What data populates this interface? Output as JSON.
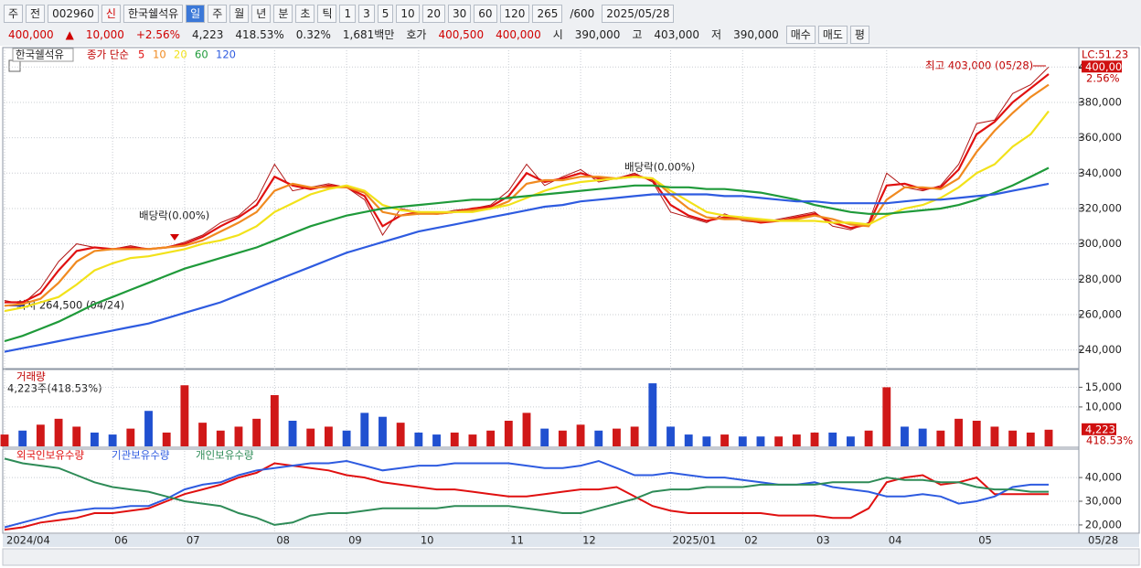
{
  "toolbar": {
    "row1": [
      "주",
      "전",
      "002960",
      "신",
      "한국쉘석유",
      "일",
      "주",
      "월",
      "년",
      "분",
      "초",
      "틱",
      "1",
      "3",
      "5",
      "10",
      "20",
      "30",
      "60",
      "120",
      "265",
      "/600",
      "2025/05/28"
    ],
    "row2": [
      "400,000",
      "▲",
      "10,000",
      "+2.56%",
      "4,223",
      "418.53%",
      "0.32%",
      "1,681백만",
      "호가",
      "400,500",
      "400,000",
      "시",
      "390,000",
      "고",
      "403,000",
      "저",
      "390,000",
      "매수",
      "매도",
      "평"
    ]
  },
  "chart_data": [
    {
      "type": "line",
      "title": "한국쉘석유",
      "legend_label": "종가 단순",
      "close": [
        268000,
        266000,
        275000,
        290000,
        300000,
        298000,
        297000,
        299000,
        297000,
        298000,
        301000,
        305000,
        312000,
        316000,
        325000,
        345000,
        330000,
        332000,
        334000,
        332000,
        325000,
        305000,
        320000,
        318000,
        317000,
        319000,
        320000,
        322000,
        330000,
        345000,
        333000,
        338000,
        342000,
        335000,
        337000,
        340000,
        335000,
        318000,
        315000,
        312000,
        317000,
        313000,
        312000,
        314000,
        316000,
        318000,
        310000,
        308000,
        312000,
        340000,
        332000,
        330000,
        333000,
        345000,
        368000,
        370000,
        385000,
        390000,
        400000
      ],
      "close_color": "#b01818",
      "last_label": "400,000",
      "change_label": "2.56%",
      "lc_label": "LC:51.23",
      "series": [
        {
          "name": "5",
          "color": "#e01010",
          "values": [
            267000,
            267000,
            272000,
            285000,
            296000,
            298000,
            297000,
            298000,
            297000,
            298000,
            300000,
            304000,
            310000,
            315000,
            322000,
            338000,
            333000,
            331000,
            333000,
            332000,
            327000,
            310000,
            316000,
            318000,
            317000,
            318000,
            320000,
            321000,
            327000,
            340000,
            335000,
            337000,
            340000,
            337000,
            337000,
            339000,
            336000,
            322000,
            316000,
            313000,
            315000,
            314000,
            312000,
            313000,
            315000,
            317000,
            312000,
            309000,
            311000,
            333000,
            334000,
            331000,
            332000,
            342000,
            362000,
            369000,
            380000,
            388000,
            396000
          ]
        },
        {
          "name": "10",
          "color": "#f08a20",
          "values": [
            265000,
            266000,
            269000,
            278000,
            290000,
            296000,
            297000,
            297000,
            297000,
            298000,
            299000,
            302000,
            307000,
            312000,
            318000,
            330000,
            334000,
            332000,
            332000,
            332000,
            329000,
            318000,
            316000,
            317000,
            317000,
            318000,
            319000,
            320000,
            324000,
            334000,
            336000,
            336000,
            338000,
            338000,
            337000,
            338000,
            337000,
            328000,
            320000,
            315000,
            314000,
            314000,
            313000,
            313000,
            314000,
            316000,
            314000,
            311000,
            310000,
            325000,
            332000,
            332000,
            331000,
            337000,
            352000,
            364000,
            374000,
            383000,
            390000
          ]
        },
        {
          "name": "20",
          "color": "#f2e21a",
          "values": [
            262000,
            264000,
            267000,
            270000,
            277000,
            285000,
            289000,
            292000,
            293000,
            295000,
            297000,
            300000,
            302000,
            305000,
            310000,
            318000,
            323000,
            328000,
            331000,
            333000,
            330000,
            322000,
            319000,
            318000,
            318000,
            318000,
            318000,
            320000,
            322000,
            326000,
            330000,
            333000,
            335000,
            336000,
            337000,
            338000,
            337000,
            330000,
            324000,
            318000,
            316000,
            315000,
            314000,
            313000,
            313000,
            313000,
            312000,
            312000,
            311000,
            316000,
            320000,
            322000,
            326000,
            332000,
            340000,
            345000,
            355000,
            362000,
            375000
          ]
        },
        {
          "name": "60",
          "color": "#1f9a3a",
          "values": [
            245000,
            248000,
            252000,
            256000,
            261000,
            266000,
            270000,
            274000,
            278000,
            282000,
            286000,
            289000,
            292000,
            295000,
            298000,
            302000,
            306000,
            310000,
            313000,
            316000,
            318000,
            320000,
            321000,
            322000,
            323000,
            324000,
            325000,
            325000,
            326000,
            327000,
            328000,
            329000,
            330000,
            331000,
            332000,
            333000,
            333000,
            332000,
            332000,
            331000,
            331000,
            330000,
            329000,
            327000,
            325000,
            322000,
            320000,
            318000,
            317000,
            317000,
            318000,
            319000,
            320000,
            322000,
            325000,
            329000,
            333000,
            338000,
            343000
          ]
        },
        {
          "name": "120",
          "color": "#2e5be0",
          "values": [
            239000,
            241000,
            243000,
            245000,
            247000,
            249000,
            251000,
            253000,
            255000,
            258000,
            261000,
            264000,
            267000,
            271000,
            275000,
            279000,
            283000,
            287000,
            291000,
            295000,
            298000,
            301000,
            304000,
            307000,
            309000,
            311000,
            313000,
            315000,
            317000,
            319000,
            321000,
            322000,
            324000,
            325000,
            326000,
            327000,
            328000,
            328000,
            328000,
            328000,
            327000,
            327000,
            326000,
            325000,
            324000,
            324000,
            323000,
            323000,
            323000,
            323000,
            324000,
            325000,
            325000,
            326000,
            327000,
            328000,
            330000,
            332000,
            334000
          ]
        }
      ],
      "annotations": [
        "최고 403,000 (05/28)",
        "최저 264,500 (04/24)",
        "배당락(0.00%)",
        "배당락(0.00%)"
      ],
      "ylim": [
        230000,
        411000
      ],
      "yticks": [
        {
          "value": 240000,
          "label": "240,000"
        },
        {
          "value": 260000,
          "label": "260,000"
        },
        {
          "value": 280000,
          "label": "280,000"
        },
        {
          "value": 300000,
          "label": "300,000"
        },
        {
          "value": 320000,
          "label": "320,000"
        },
        {
          "value": 340000,
          "label": "340,000"
        },
        {
          "value": 360000,
          "label": "360,000"
        },
        {
          "value": 380000,
          "label": "380,000"
        },
        {
          "value": 400000,
          "label": "400,000"
        }
      ],
      "grid": true
    },
    {
      "type": "bar",
      "title": "거래량",
      "subtitle": "4,223주(418.53%)",
      "up_color": "#d01818",
      "down_color": "#2050d0",
      "values": [
        3000,
        4000,
        5500,
        7000,
        5000,
        3500,
        3000,
        4500,
        9000,
        3500,
        15500,
        6000,
        4000,
        5000,
        7000,
        13000,
        6500,
        4500,
        5000,
        4000,
        8500,
        7500,
        6000,
        3500,
        3000,
        3500,
        3000,
        4000,
        6500,
        8500,
        4500,
        4000,
        5500,
        4000,
        4500,
        5000,
        16000,
        5000,
        3000,
        2500,
        3000,
        2500,
        2500,
        2500,
        3000,
        3500,
        3500,
        2500,
        4000,
        15000,
        5000,
        4500,
        4000,
        7000,
        6500,
        5000,
        4000,
        3500,
        4223
      ],
      "last_label": "4,223",
      "ratio_label": "418.53%",
      "ylim": [
        0,
        19500
      ],
      "yticks": [
        {
          "value": 10000,
          "label": "10,000"
        },
        {
          "value": 15000,
          "label": "15,000"
        }
      ],
      "grid": true
    },
    {
      "type": "line",
      "categories": [
        "2024/04",
        null,
        null,
        null,
        null,
        null,
        "06",
        null,
        null,
        null,
        "07",
        null,
        null,
        null,
        null,
        "08",
        null,
        null,
        null,
        "09",
        null,
        null,
        null,
        "10",
        null,
        null,
        null,
        null,
        "11",
        null,
        null,
        null,
        "12",
        null,
        null,
        null,
        null,
        "2025/01",
        null,
        null,
        null,
        "02",
        null,
        null,
        null,
        "03",
        null,
        null,
        null,
        "04",
        null,
        null,
        null,
        null,
        "05",
        null,
        null,
        null,
        null
      ],
      "end_label": "05/28",
      "series": [
        {
          "name": "외국인보유수량",
          "color": "#e01010",
          "values": [
            18000,
            19000,
            21000,
            22000,
            23000,
            25000,
            25000,
            26000,
            27000,
            30000,
            33000,
            35000,
            37000,
            40000,
            42000,
            46000,
            45000,
            44000,
            43000,
            41000,
            40000,
            38000,
            37000,
            36000,
            35000,
            35000,
            34000,
            33000,
            32000,
            32000,
            33000,
            34000,
            35000,
            35000,
            36000,
            32000,
            28000,
            26000,
            25000,
            25000,
            25000,
            25000,
            25000,
            24000,
            24000,
            24000,
            23000,
            23000,
            27000,
            38000,
            40000,
            41000,
            37000,
            38000,
            40000,
            33000,
            33000,
            33000,
            33000
          ]
        },
        {
          "name": "기관보유수량",
          "color": "#2e5be0",
          "values": [
            19000,
            21000,
            23000,
            25000,
            26000,
            27000,
            27000,
            28000,
            28000,
            31000,
            35000,
            37000,
            38000,
            41000,
            43000,
            44000,
            45000,
            46000,
            46000,
            47000,
            45000,
            43000,
            44000,
            45000,
            45000,
            46000,
            46000,
            46000,
            46000,
            45000,
            44000,
            44000,
            45000,
            47000,
            44000,
            41000,
            41000,
            42000,
            41000,
            40000,
            40000,
            39000,
            38000,
            37000,
            37000,
            38000,
            36000,
            35000,
            34000,
            32000,
            32000,
            33000,
            32000,
            29000,
            30000,
            32000,
            36000,
            37000,
            37000
          ]
        },
        {
          "name": "개인보유수량",
          "color": "#2e8b57",
          "values": [
            48000,
            46000,
            45000,
            44000,
            41000,
            38000,
            36000,
            35000,
            34000,
            32000,
            30000,
            29000,
            28000,
            25000,
            23000,
            20000,
            21000,
            24000,
            25000,
            25000,
            26000,
            27000,
            27000,
            27000,
            27000,
            28000,
            28000,
            28000,
            28000,
            27000,
            26000,
            25000,
            25000,
            27000,
            29000,
            31000,
            34000,
            35000,
            35000,
            36000,
            36000,
            36000,
            37000,
            37000,
            37000,
            37000,
            38000,
            38000,
            38000,
            40000,
            39000,
            39000,
            38000,
            38000,
            36000,
            35000,
            35000,
            34000,
            34000
          ]
        }
      ],
      "ylim": [
        16500,
        52000
      ],
      "yticks": [
        {
          "value": 20000,
          "label": "20,000"
        },
        {
          "value": 30000,
          "label": "30,000"
        },
        {
          "value": 40000,
          "label": "40,000"
        }
      ],
      "grid": true
    }
  ]
}
